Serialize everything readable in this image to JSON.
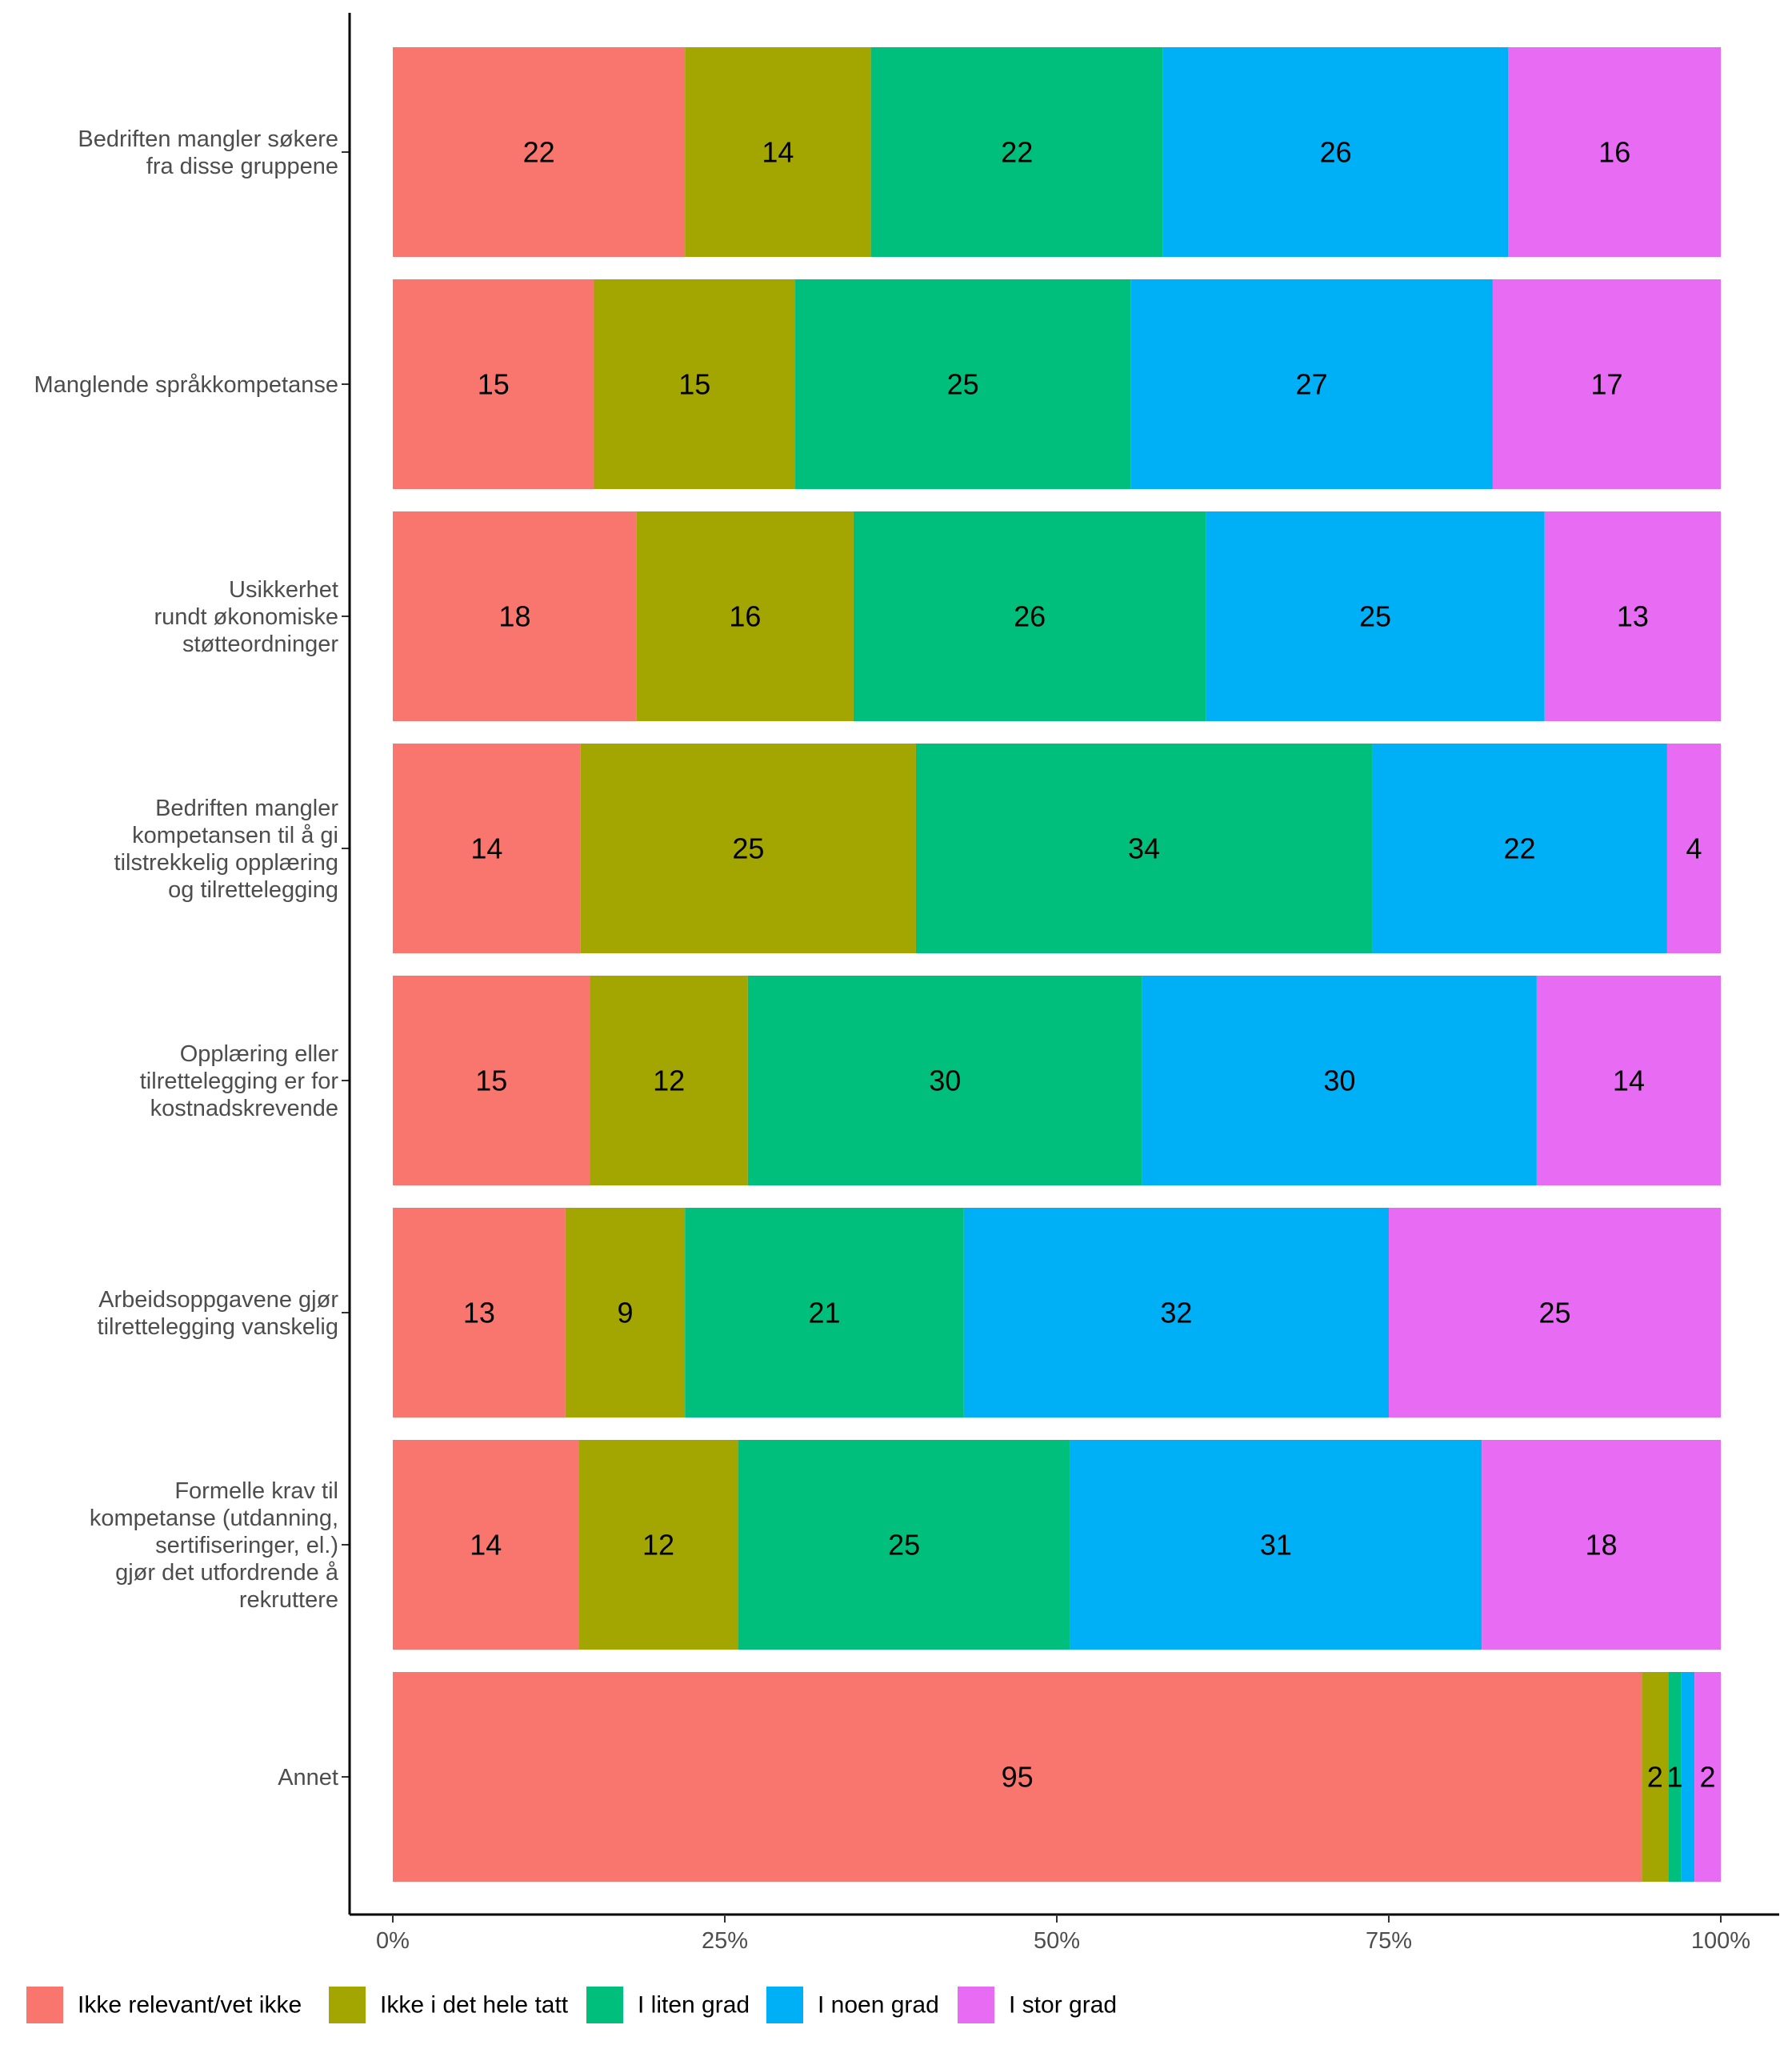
{
  "chart_data": {
    "type": "bar",
    "orientation": "horizontal",
    "stacked": true,
    "normalized": true,
    "categories": [
      [
        "Bedriften mangler søkere",
        "fra disse gruppene"
      ],
      [
        "Manglende språkkompetanse"
      ],
      [
        "Usikkerhet",
        "rundt økonomiske",
        "støtteordninger"
      ],
      [
        "Bedriften mangler",
        "kompetansen til å gi",
        "tilstrekkelig opplæring",
        "og tilrettelegging"
      ],
      [
        "Opplæring eller",
        "tilrettelegging er for",
        "kostnadskrevende"
      ],
      [
        "Arbeidsoppgavene gjør",
        "tilrettelegging vanskelig"
      ],
      [
        "Formelle krav til",
        "kompetanse (utdanning,",
        "sertifiseringer, el.)",
        "gjør det utfordrende å",
        "rekruttere"
      ],
      [
        "Annet"
      ]
    ],
    "series": [
      {
        "name": "Ikke relevant/vet ikke",
        "color": "#F8766D",
        "values": [
          22,
          15,
          18,
          14,
          15,
          13,
          14,
          95
        ]
      },
      {
        "name": "Ikke i det hele tatt",
        "color": "#A3A500",
        "values": [
          14,
          15,
          16,
          25,
          12,
          9,
          12,
          2
        ]
      },
      {
        "name": "I liten grad",
        "color": "#00BF7D",
        "values": [
          22,
          25,
          26,
          34,
          30,
          21,
          25,
          1
        ]
      },
      {
        "name": "I noen grad",
        "color": "#00B0F6",
        "values": [
          26,
          27,
          25,
          22,
          30,
          32,
          31,
          1
        ]
      },
      {
        "name": "I stor grad",
        "color": "#E76BF3",
        "values": [
          16,
          17,
          13,
          4,
          14,
          25,
          18,
          2
        ]
      }
    ],
    "label_text": [
      [
        "22",
        "14",
        "22",
        "26",
        "16"
      ],
      [
        "15",
        "15",
        "25",
        "27",
        "17"
      ],
      [
        "18",
        "16",
        "26",
        "25",
        "13"
      ],
      [
        "14",
        "25",
        "34",
        "22",
        "4"
      ],
      [
        "15",
        "12",
        "30",
        "30",
        "14"
      ],
      [
        "13",
        "9",
        "21",
        "32",
        "25"
      ],
      [
        "14",
        "12",
        "25",
        "31",
        "18"
      ],
      [
        "95",
        "2",
        "1",
        "",
        "2"
      ]
    ],
    "xticks": [
      "0%",
      "25%",
      "50%",
      "75%",
      "100%"
    ],
    "xlim": [
      0,
      1
    ],
    "xlabel": "",
    "ylabel": "",
    "title": "",
    "grid": false,
    "legend_position": "bottom"
  }
}
